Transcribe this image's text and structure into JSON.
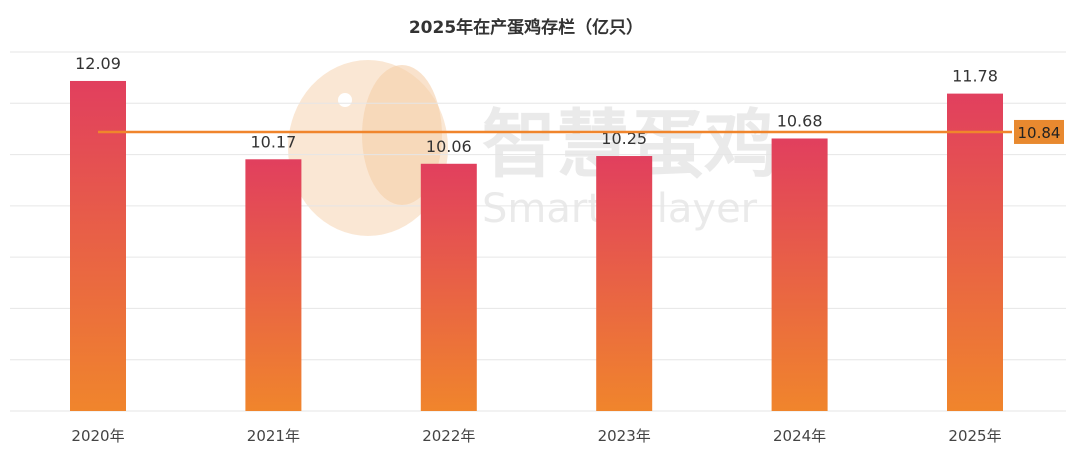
{
  "chart_data": {
    "type": "bar",
    "title": "2025年在产蛋鸡存栏（亿只）",
    "categories": [
      "2020年",
      "2021年",
      "2022年",
      "2023年",
      "2024年",
      "2025年"
    ],
    "values": [
      12.09,
      10.17,
      10.06,
      10.25,
      10.68,
      11.78
    ],
    "value_labels": [
      "12.09",
      "10.17",
      "10.06",
      "10.25",
      "10.68",
      "11.78"
    ],
    "ylim": [
      4,
      12.8
    ],
    "grid": true,
    "reference_line": {
      "value": 10.84,
      "label": "10.84"
    },
    "colors": {
      "bar_top": "#e13f5e",
      "bar_bottom": "#f0852c",
      "reference_line": "#f0852c",
      "reference_badge": "#e8892f"
    }
  },
  "watermark": {
    "chinese": "智慧蛋鸡",
    "english": "Smarter layer",
    "logo_icon": "chicken-logo-icon"
  }
}
